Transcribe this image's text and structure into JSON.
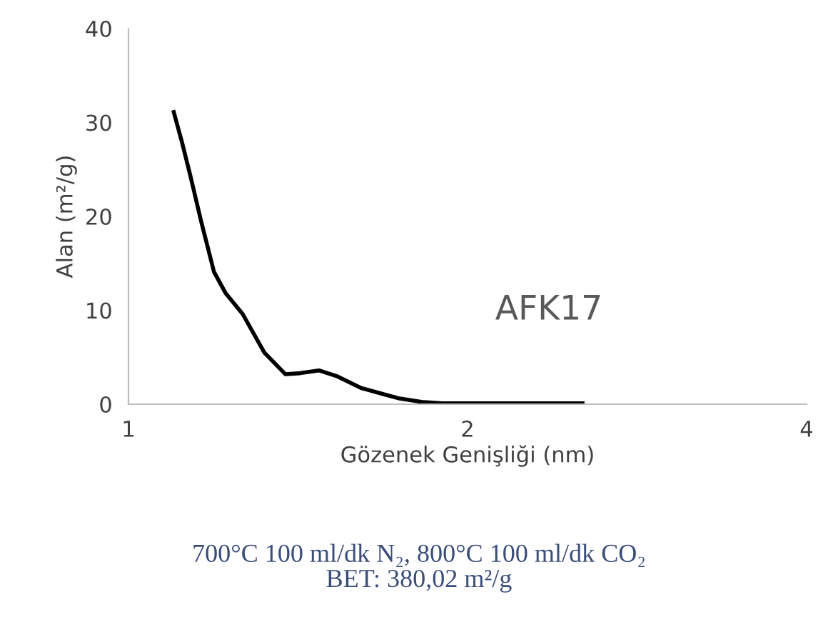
{
  "chart_data": {
    "type": "line",
    "xlabel": "Gözenek Genişliği (nm)",
    "ylabel": "Alan (m²/g)",
    "log": "x",
    "x": [
      1.097,
      1.115,
      1.135,
      1.16,
      1.191,
      1.22,
      1.263,
      1.32,
      1.378,
      1.42,
      1.476,
      1.53,
      1.611,
      1.68,
      1.741,
      1.82,
      1.9,
      2.2,
      2.53
    ],
    "series": [
      {
        "color": "#000000",
        "values": [
          31.1,
          28,
          24.3,
          19.5,
          14.1,
          11.8,
          9.6,
          5.5,
          3.2,
          3.3,
          3.6,
          3.0,
          1.7,
          1.1,
          0.6,
          0.25,
          0.1,
          0.1,
          0.1
        ]
      }
    ],
    "xlim": [
      1,
      4
    ],
    "xticks": [
      1,
      2,
      4
    ],
    "ylim": [
      0,
      40
    ],
    "yticks": [
      0,
      10,
      20,
      30,
      40
    ],
    "grid": false,
    "legend": false,
    "marker": "none",
    "line_style": "solid",
    "annotations": [
      "AFK17",
      "700°C 100 ml/dk N₂, 800°C 100 ml/dk CO₂\nBET: 380,02 m²/g"
    ]
  }
}
